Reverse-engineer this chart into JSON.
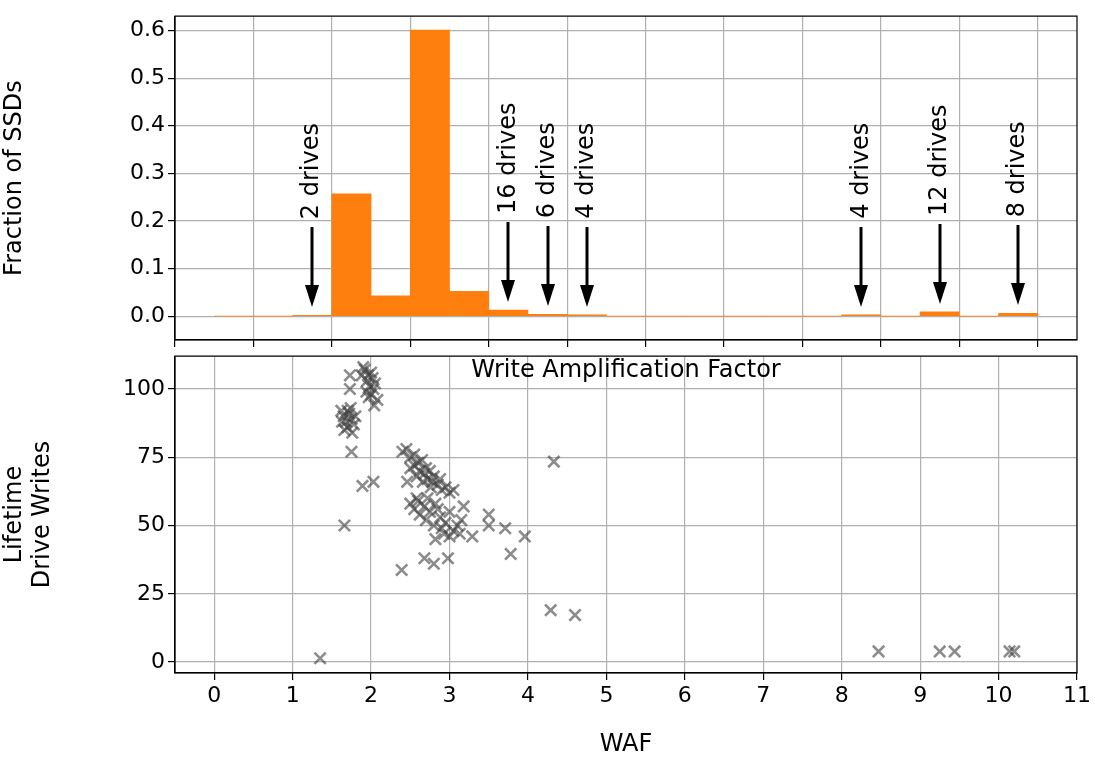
{
  "chart_data": [
    {
      "type": "histogram",
      "ylabel": "Fraction of SSDs",
      "xlabel": "Write Amplification Factor",
      "bins": [
        0,
        0.5,
        1,
        1.5,
        2,
        2.5,
        3,
        3.5,
        4,
        4.5,
        5,
        5.5,
        6,
        6.5,
        7,
        7.5,
        8,
        8.5,
        9,
        9.5,
        10,
        10.5
      ],
      "values": [
        0,
        0,
        0.002,
        0.257,
        0.043,
        0.601,
        0.052,
        0.013,
        0.004,
        0.003,
        0,
        0,
        0,
        0,
        0,
        0,
        0.003,
        0,
        0.009,
        0,
        0.006
      ],
      "color": "#ff7f0e",
      "xlim": [
        -0.5,
        11
      ],
      "xticks": [
        0,
        1,
        2,
        3,
        4,
        5,
        6,
        7,
        8,
        9,
        10,
        11
      ],
      "ylim": [
        -0.05,
        0.63
      ],
      "yticks": [
        {
          "value": 0,
          "label": "0.0"
        },
        0.1,
        0.2,
        0.3,
        0.4,
        0.5,
        0.6
      ],
      "grid": true,
      "legend": false,
      "tick_labels": "y",
      "annotations": [
        {
          "text": "2 drives",
          "x": 1.25
        },
        {
          "text": "16 drives",
          "x": 3.75
        },
        {
          "text": "6 drives",
          "x": 4.25
        },
        {
          "text": "4 drives",
          "x": 4.75
        },
        {
          "text": "4 drives",
          "x": 8.25
        },
        {
          "text": "12 drives",
          "x": 9.25
        },
        {
          "text": "8 drives",
          "x": 10.25
        }
      ]
    },
    {
      "type": "scatter",
      "xlabel": "WAF",
      "ylabel": "Lifetime\nDrive Writes",
      "xlim": [
        -0.5,
        11
      ],
      "xticks": [
        0,
        1,
        2,
        3,
        4,
        5,
        6,
        7,
        8,
        9,
        10,
        11
      ],
      "ylim": [
        -4,
        112
      ],
      "yticks": [
        0,
        25,
        50,
        75,
        100
      ],
      "grid": true,
      "legend": false,
      "marker": "cross",
      "series": [
        {
          "color": "#404040",
          "x": [
            1.35,
            1.66,
            1.73,
            1.73,
            1.75,
            1.89,
            2.03,
            2.04,
            1.62,
            1.65,
            1.68,
            1.7,
            1.72,
            1.75,
            1.78,
            1.66,
            1.74,
            1.8,
            1.7,
            1.63,
            1.76,
            1.88,
            1.92,
            1.95,
            1.98,
            2.0,
            2.02,
            1.94,
            1.97,
            2.05,
            1.9,
            2.0,
            2.03,
            1.96,
            2.08,
            2.4,
            2.45,
            2.5,
            2.55,
            2.55,
            2.6,
            2.62,
            2.65,
            2.68,
            2.7,
            2.72,
            2.75,
            2.78,
            2.8,
            2.85,
            2.88,
            2.9,
            2.95,
            3.0,
            3.05,
            2.58,
            2.66,
            2.76,
            2.5,
            2.46,
            2.5,
            2.55,
            2.6,
            2.62,
            2.68,
            2.7,
            2.75,
            2.8,
            2.82,
            2.88,
            2.9,
            2.95,
            3.0,
            3.05,
            3.1,
            3.15,
            2.85,
            2.72,
            2.58,
            2.93,
            3.0,
            3.18,
            3.13,
            3.29,
            2.82,
            3.5,
            3.5,
            3.71,
            3.96,
            3.78,
            2.39,
            2.68,
            2.8,
            2.98,
            4.33,
            4.29,
            4.6,
            8.47,
            9.25,
            9.44,
            10.14,
            10.2
          ],
          "values": [
            1.4,
            50,
            105,
            100,
            77,
            64.5,
            66,
            94,
            92,
            90,
            88,
            86,
            91,
            89,
            87,
            85,
            93,
            90,
            92,
            88,
            84,
            105,
            107,
            103,
            101,
            106,
            104,
            99,
            97,
            102,
            108,
            98,
            100,
            105,
            96,
            77,
            78,
            75,
            76,
            72,
            73,
            70,
            74,
            69,
            71,
            67,
            70,
            66,
            68,
            65,
            67,
            63,
            64,
            62,
            63,
            68,
            66,
            64,
            71,
            66,
            58,
            56,
            59,
            54,
            57,
            52,
            55,
            50,
            58,
            53,
            49,
            51,
            55,
            48,
            50,
            52,
            56,
            60,
            60,
            47,
            46,
            57,
            47,
            46,
            45,
            54,
            50,
            49,
            46,
            39.6,
            33.7,
            38,
            36,
            38,
            73.4,
            19,
            17.2,
            3.9,
            3.9,
            3.9,
            3.9,
            3.9
          ]
        }
      ]
    }
  ]
}
